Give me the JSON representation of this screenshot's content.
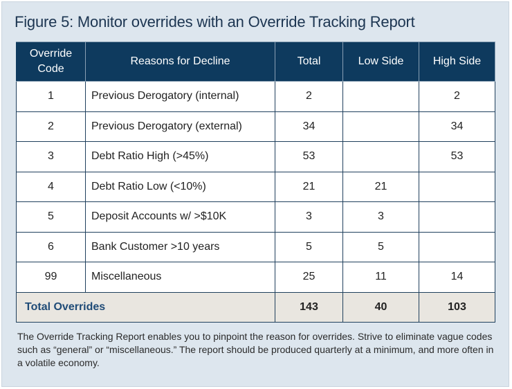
{
  "figure": {
    "title": "Figure 5: Monitor overrides with an Override Tracking Report"
  },
  "table": {
    "headers": {
      "code": "Override Code",
      "reason": "Reasons for Decline",
      "total": "Total",
      "low": "Low Side",
      "high": "High Side"
    },
    "rows": [
      {
        "code": "1",
        "reason": "Previous Derogatory (internal)",
        "total": "2",
        "low": "",
        "high": "2"
      },
      {
        "code": "2",
        "reason": "Previous Derogatory (external)",
        "total": "34",
        "low": "",
        "high": "34"
      },
      {
        "code": "3",
        "reason": "Debt Ratio High (>45%)",
        "total": "53",
        "low": "",
        "high": "53"
      },
      {
        "code": "4",
        "reason": "Debt Ratio Low (<10%)",
        "total": "21",
        "low": "21",
        "high": ""
      },
      {
        "code": "5",
        "reason": "Deposit Accounts w/ >$10K",
        "total": "3",
        "low": "3",
        "high": ""
      },
      {
        "code": "6",
        "reason": "Bank Customer >10 years",
        "total": "5",
        "low": "5",
        "high": ""
      },
      {
        "code": "99",
        "reason": "Miscellaneous",
        "total": "25",
        "low": "11",
        "high": "14"
      }
    ],
    "totals": {
      "label": "Total Overrides",
      "total": "143",
      "low": "40",
      "high": "103"
    }
  },
  "caption": "The Override Tracking Report enables you to pinpoint the reason for overrides. Strive to eliminate vague codes such as “general” or “miscellaneous.” The report should be produced quarterly at a minimum, and more often in a volatile economy."
}
